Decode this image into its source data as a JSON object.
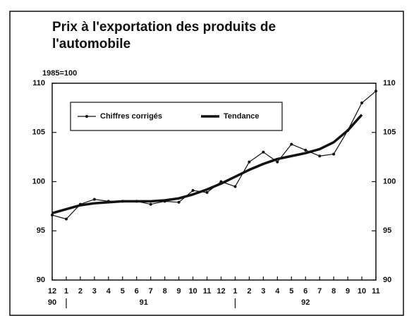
{
  "chart_data": {
    "type": "line",
    "title": [
      "Prix à l'exportation des produits de",
      "l'automobile"
    ],
    "unit_label": "1985=100",
    "categories": [
      "12",
      "1",
      "2",
      "3",
      "4",
      "5",
      "6",
      "7",
      "8",
      "9",
      "10",
      "11",
      "12",
      "1",
      "2",
      "3",
      "4",
      "5",
      "6",
      "7",
      "8",
      "9",
      "10",
      "11"
    ],
    "year_groups": [
      {
        "label": "90",
        "count": 1
      },
      {
        "label": "91",
        "count": 12
      },
      {
        "label": "92",
        "count": 11
      }
    ],
    "series": [
      {
        "name": "Chiffres corrigés",
        "color": "#111111",
        "markers": true,
        "values": [
          96.6,
          96.2,
          97.7,
          98.2,
          98.0,
          98.0,
          98.0,
          97.7,
          98.0,
          97.9,
          99.1,
          98.9,
          100.0,
          99.5,
          102.0,
          103.0,
          102.0,
          103.8,
          103.2,
          102.6,
          102.8,
          105.2,
          108.0,
          109.2
        ]
      },
      {
        "name": "Tendance",
        "color": "#111111",
        "markers": false,
        "values": [
          96.8,
          97.2,
          97.6,
          97.8,
          97.9,
          98.0,
          98.0,
          98.0,
          98.1,
          98.3,
          98.7,
          99.2,
          99.8,
          100.5,
          101.2,
          101.8,
          102.3,
          102.6,
          102.9,
          103.3,
          104.0,
          105.2,
          106.8,
          null
        ]
      }
    ],
    "ylim": [
      90,
      110
    ],
    "yticks": [
      90,
      95,
      100,
      105,
      110
    ],
    "y2lim": [
      90,
      110
    ],
    "y2ticks": [
      90,
      95,
      100,
      105,
      110
    ]
  }
}
